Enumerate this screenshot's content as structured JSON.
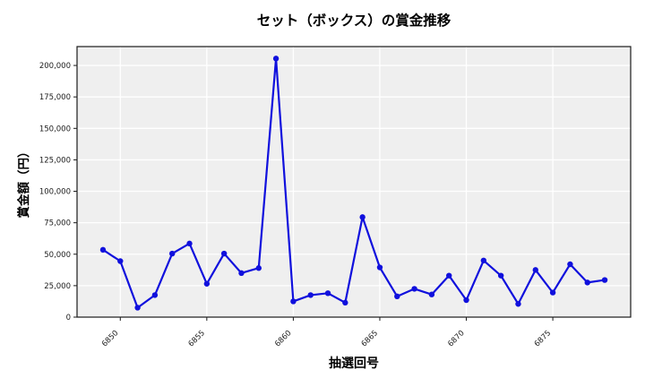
{
  "chart_data": {
    "type": "line",
    "title": "セット（ボックス）の賞金推移",
    "xlabel": "抽選回号",
    "ylabel": "賞金額（円）",
    "x": [
      6849,
      6850,
      6851,
      6852,
      6853,
      6854,
      6855,
      6856,
      6857,
      6858,
      6859,
      6860,
      6861,
      6862,
      6863,
      6864,
      6865,
      6866,
      6867,
      6868,
      6869,
      6870,
      6871,
      6872,
      6873,
      6874,
      6875,
      6876,
      6877,
      6878
    ],
    "values": [
      53500,
      44500,
      7500,
      17500,
      50500,
      58500,
      26500,
      50500,
      35000,
      39000,
      205500,
      12500,
      17500,
      19000,
      11500,
      79500,
      39500,
      16500,
      22500,
      18000,
      33000,
      13500,
      45000,
      33000,
      10500,
      37500,
      19500,
      42000,
      27500,
      29500
    ],
    "xticks": [
      6850,
      6855,
      6860,
      6865,
      6870,
      6875
    ],
    "yticks": [
      0,
      25000,
      50000,
      75000,
      100000,
      125000,
      150000,
      175000,
      200000
    ],
    "xlim": [
      6847.5,
      6879.5
    ],
    "ylim": [
      0,
      215000
    ],
    "grid": true,
    "legend_position": "none",
    "line_color": "#1010dd",
    "marker_color": "#1010dd",
    "plot_bg_color": "#efefef",
    "grid_color": "#ffffff",
    "spine_color": "#1a1a1a",
    "tick_label_color": "#1c1c1c"
  }
}
